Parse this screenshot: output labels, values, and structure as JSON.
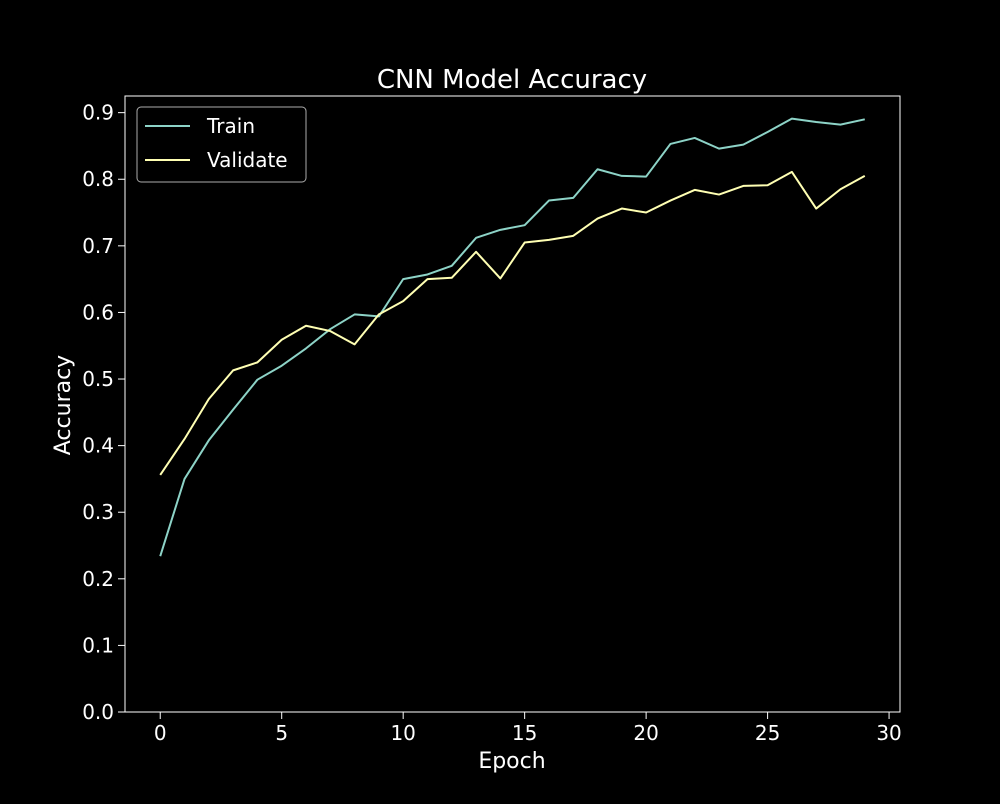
{
  "chart_data": {
    "type": "line",
    "title": "CNN Model Accuracy",
    "xlabel": "Epoch",
    "ylabel": "Accuracy",
    "xlim": [
      -1.45,
      30.45
    ],
    "ylim": [
      0.0,
      0.925
    ],
    "xticks": [
      0,
      5,
      10,
      15,
      20,
      25,
      30
    ],
    "xtick_labels": [
      "0",
      "5",
      "10",
      "15",
      "20",
      "25",
      "30"
    ],
    "yticks": [
      0.0,
      0.1,
      0.2,
      0.3,
      0.4,
      0.5,
      0.6,
      0.7,
      0.8,
      0.9
    ],
    "ytick_labels": [
      "0.0",
      "0.1",
      "0.2",
      "0.3",
      "0.4",
      "0.5",
      "0.6",
      "0.7",
      "0.8",
      "0.9"
    ],
    "grid": false,
    "legend_position": "top-left",
    "background_color": "#000000",
    "foreground_color": "#ffffff",
    "x": [
      0,
      1,
      2,
      3,
      4,
      5,
      6,
      7,
      8,
      9,
      10,
      11,
      12,
      13,
      14,
      15,
      16,
      17,
      18,
      19,
      20,
      21,
      22,
      23,
      24,
      25,
      26,
      27,
      28,
      29
    ],
    "series": [
      {
        "name": "Train",
        "color": "#8dd3c7",
        "values": [
          0.234,
          0.35,
          0.408,
          0.454,
          0.499,
          0.52,
          0.546,
          0.575,
          0.597,
          0.594,
          0.65,
          0.657,
          0.67,
          0.712,
          0.724,
          0.731,
          0.768,
          0.772,
          0.815,
          0.805,
          0.804,
          0.853,
          0.862,
          0.846,
          0.852,
          0.871,
          0.891,
          0.886,
          0.882,
          0.89
        ]
      },
      {
        "name": "Validate",
        "color": "#ffffb3",
        "values": [
          0.356,
          0.41,
          0.47,
          0.513,
          0.525,
          0.559,
          0.58,
          0.572,
          0.552,
          0.597,
          0.617,
          0.65,
          0.652,
          0.691,
          0.651,
          0.705,
          0.709,
          0.715,
          0.741,
          0.756,
          0.75,
          0.768,
          0.784,
          0.777,
          0.79,
          0.791,
          0.811,
          0.756,
          0.785,
          0.805
        ]
      }
    ]
  }
}
